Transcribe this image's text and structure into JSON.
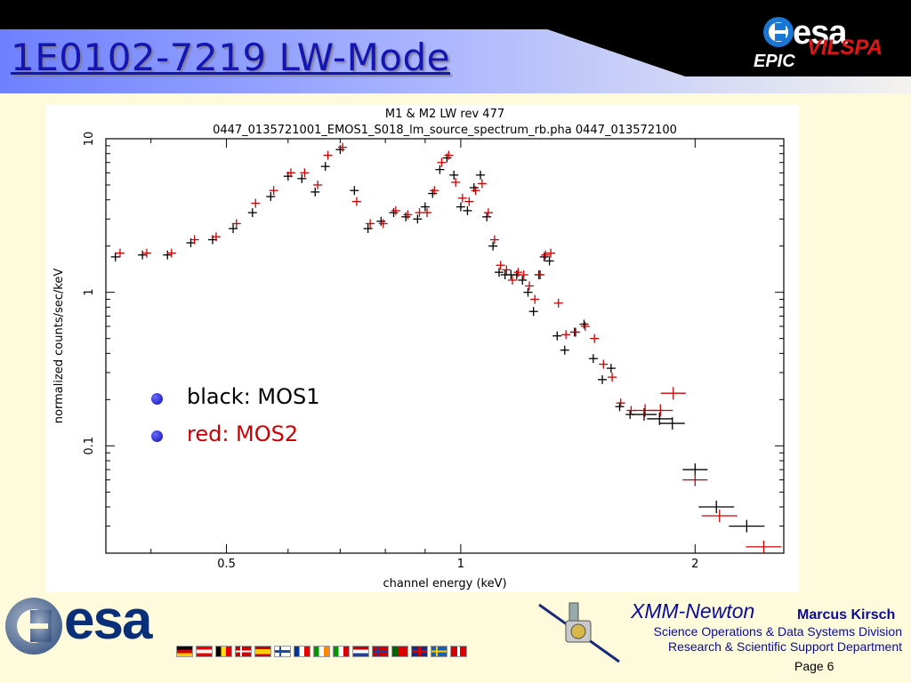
{
  "slide": {
    "title": "1E0102-7219 LW-Mode",
    "epic_label": "EPIC",
    "esa_word": "esa",
    "vilspa": "VILSPA",
    "legend": [
      {
        "text": "black: MOS1",
        "color": "#000000"
      },
      {
        "text": "red: MOS2",
        "color": "#cc0000"
      }
    ],
    "footer": {
      "esa_word": "esa",
      "mission": "XMM-Newton",
      "author": "Marcus Kirsch",
      "division": "Science Operations & Data Systems Division",
      "department": "Research & Scientific Support Department",
      "page": "Page 6"
    },
    "flags": [
      "germany",
      "austria",
      "belgium",
      "denmark",
      "spain",
      "finland",
      "france",
      "ireland",
      "italy",
      "netherlands",
      "norway",
      "portugal",
      "uk",
      "sweden",
      "switzerland"
    ]
  },
  "chart_data": {
    "type": "scatter",
    "title": "M1 & M2 LW rev 477",
    "subtitle": "0447_0135721001_EMOS1_S018_lm_source_spectrum_rb.pha 0447_013572100",
    "xlabel": "channel energy (keV)",
    "ylabel": "normalized counts/sec/keV",
    "xscale": "log",
    "yscale": "log",
    "xlim": [
      0.35,
      2.6
    ],
    "ylim": [
      0.02,
      10
    ],
    "x_ticks": [
      "0.5",
      "1",
      "2"
    ],
    "y_ticks": [
      "0.1",
      "1",
      "10"
    ],
    "series": [
      {
        "name": "black: MOS1",
        "color": "#000000",
        "x": [
          0.36,
          0.39,
          0.42,
          0.45,
          0.48,
          0.51,
          0.54,
          0.57,
          0.6,
          0.625,
          0.65,
          0.67,
          0.7,
          0.73,
          0.76,
          0.79,
          0.82,
          0.85,
          0.88,
          0.9,
          0.92,
          0.94,
          0.96,
          0.98,
          1.0,
          1.02,
          1.04,
          1.06,
          1.08,
          1.1,
          1.12,
          1.14,
          1.16,
          1.18,
          1.2,
          1.22,
          1.24,
          1.26,
          1.28,
          1.3,
          1.33,
          1.36,
          1.4,
          1.44,
          1.48,
          1.52,
          1.56,
          1.6,
          1.65,
          1.72,
          1.8,
          1.87,
          2.0,
          2.13,
          2.33
        ],
        "y": [
          1.7,
          1.75,
          1.75,
          2.1,
          2.2,
          2.6,
          3.3,
          4.2,
          5.7,
          5.5,
          4.5,
          6.6,
          8.5,
          4.6,
          2.6,
          2.9,
          3.3,
          3.1,
          3.0,
          3.6,
          4.4,
          6.3,
          7.5,
          5.8,
          3.6,
          3.4,
          4.8,
          5.8,
          3.1,
          2.0,
          1.35,
          1.3,
          1.3,
          1.3,
          1.2,
          1.0,
          0.75,
          1.3,
          1.7,
          1.6,
          0.52,
          0.42,
          0.55,
          0.62,
          0.37,
          0.27,
          0.32,
          0.18,
          0.16,
          0.16,
          0.15,
          0.14,
          0.07,
          0.04,
          0.03
        ]
      },
      {
        "name": "red: MOS2",
        "color": "#cc0000",
        "x": [
          0.365,
          0.395,
          0.425,
          0.455,
          0.485,
          0.515,
          0.545,
          0.575,
          0.605,
          0.63,
          0.655,
          0.675,
          0.705,
          0.735,
          0.765,
          0.795,
          0.825,
          0.855,
          0.885,
          0.905,
          0.925,
          0.945,
          0.965,
          0.985,
          1.005,
          1.025,
          1.045,
          1.065,
          1.085,
          1.105,
          1.125,
          1.145,
          1.165,
          1.185,
          1.205,
          1.225,
          1.245,
          1.265,
          1.285,
          1.305,
          1.335,
          1.365,
          1.405,
          1.445,
          1.485,
          1.525,
          1.565,
          1.605,
          1.655,
          1.725,
          1.805,
          1.875,
          2.0,
          2.15,
          2.45
        ],
        "y": [
          1.8,
          1.8,
          1.8,
          2.2,
          2.3,
          2.8,
          3.8,
          4.6,
          6.0,
          6.0,
          5.0,
          7.8,
          8.8,
          3.9,
          2.8,
          2.8,
          3.4,
          3.2,
          3.3,
          3.3,
          4.6,
          7.0,
          7.8,
          5.2,
          4.1,
          3.9,
          4.6,
          5.1,
          3.3,
          2.2,
          1.5,
          1.4,
          1.2,
          1.35,
          1.3,
          1.1,
          0.9,
          1.3,
          1.75,
          1.8,
          0.85,
          0.53,
          0.55,
          0.6,
          0.5,
          0.34,
          0.28,
          0.19,
          0.17,
          0.17,
          0.17,
          0.22,
          0.06,
          0.035,
          0.022
        ]
      }
    ]
  }
}
